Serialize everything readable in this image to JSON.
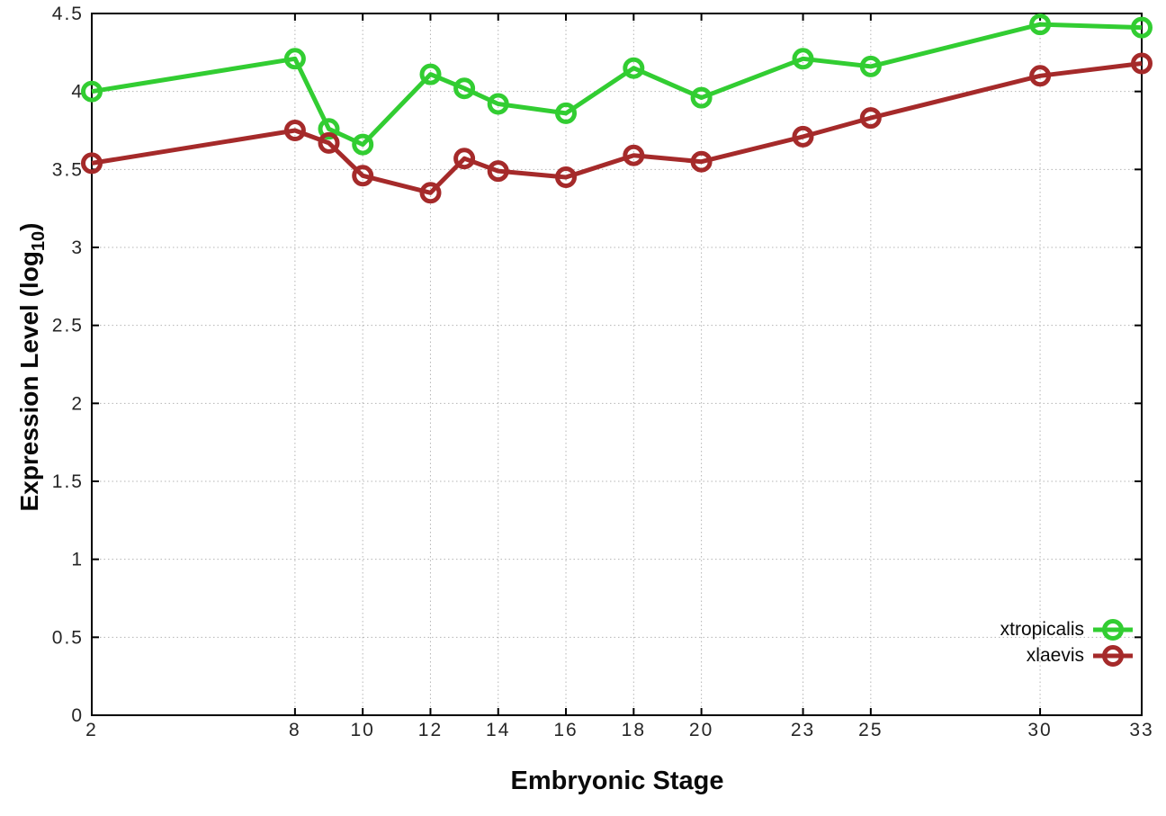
{
  "chart_data": {
    "type": "line",
    "title": "",
    "xlabel": "Embryonic Stage",
    "ylabel": {
      "prefix": "Expression Level (log",
      "sub": "10",
      "suffix": ")"
    },
    "x": [
      2,
      8,
      9,
      10,
      12,
      13,
      14,
      16,
      18,
      20,
      23,
      25,
      30,
      33
    ],
    "series": [
      {
        "name": "xtropicalis",
        "color": "#32cd32",
        "values": [
          4.0,
          4.21,
          3.76,
          3.66,
          4.11,
          4.02,
          3.92,
          3.86,
          4.15,
          3.96,
          4.21,
          4.16,
          4.43,
          4.41
        ]
      },
      {
        "name": "xlaevis",
        "color": "#a52a2a",
        "values": [
          3.54,
          3.75,
          3.67,
          3.46,
          3.35,
          3.57,
          3.49,
          3.45,
          3.59,
          3.55,
          3.71,
          3.83,
          4.1,
          4.18
        ]
      }
    ],
    "xlim": [
      2,
      33
    ],
    "ylim": [
      0,
      4.5
    ],
    "xticks": [
      2,
      8,
      10,
      12,
      14,
      16,
      18,
      20,
      23,
      25,
      30,
      33
    ],
    "xtick_labels": [
      "2",
      "8",
      "10",
      "12",
      "14",
      "16",
      "18",
      "20",
      "23",
      "25",
      "30",
      "33"
    ],
    "yticks": [
      0,
      0.5,
      1,
      1.5,
      2,
      2.5,
      3,
      3.5,
      4,
      4.5
    ],
    "ytick_labels": [
      "0",
      "0.5",
      "1",
      "1.5",
      "2",
      "2.5",
      "3",
      "3.5",
      "4",
      "4.5"
    ],
    "grid": "dotted",
    "marker": "open-circle",
    "legend": {
      "position": "inside-bottom-right",
      "entries": [
        "xtropicalis",
        "xlaevis"
      ]
    }
  },
  "colors": {
    "background": "#ffffff",
    "axis": "#000000",
    "grid": "#b4b4b4",
    "tick_text": "#262626"
  }
}
